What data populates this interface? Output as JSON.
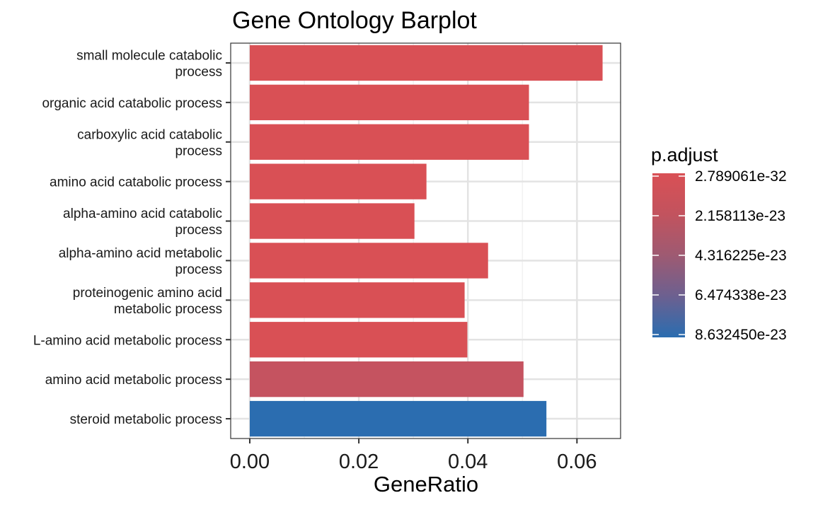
{
  "chart_data": {
    "type": "bar",
    "orientation": "horizontal",
    "title": "Gene Ontology Barplot",
    "xlabel": "GeneRatio",
    "ylabel": "",
    "xlim": [
      -0.0035,
      0.068
    ],
    "x_ticks": [
      0.0,
      0.02,
      0.04,
      0.06
    ],
    "x_tick_labels": [
      "0.00",
      "0.02",
      "0.04",
      "0.06"
    ],
    "grid": true,
    "categories": [
      "small molecule catabolic\nprocess",
      "organic acid catabolic process",
      "carboxylic acid catabolic\nprocess",
      "amino acid catabolic process",
      "alpha-amino acid catabolic\nprocess",
      "alpha-amino acid metabolic\nprocess",
      "proteinogenic amino acid\nmetabolic process",
      "L-amino acid metabolic process",
      "amino acid metabolic process",
      "steroid metabolic process"
    ],
    "values": [
      0.0647,
      0.0512,
      0.0512,
      0.0324,
      0.0302,
      0.0437,
      0.0394,
      0.0399,
      0.0502,
      0.0544
    ],
    "p_adjust": [
      2.8e-32,
      1e-30,
      1e-30,
      1e-28,
      1e-28,
      1e-27,
      1e-27,
      1e-27,
      1e-23,
      8.6e-23
    ],
    "color_legend": {
      "title": "p.adjust",
      "tick_labels": [
        "2.789061e-32",
        "2.158113e-23",
        "4.316225e-23",
        "6.474338e-23",
        "8.632450e-23"
      ],
      "placement": "right",
      "low_color": "#d95055",
      "high_color": "#2a6db0"
    }
  }
}
